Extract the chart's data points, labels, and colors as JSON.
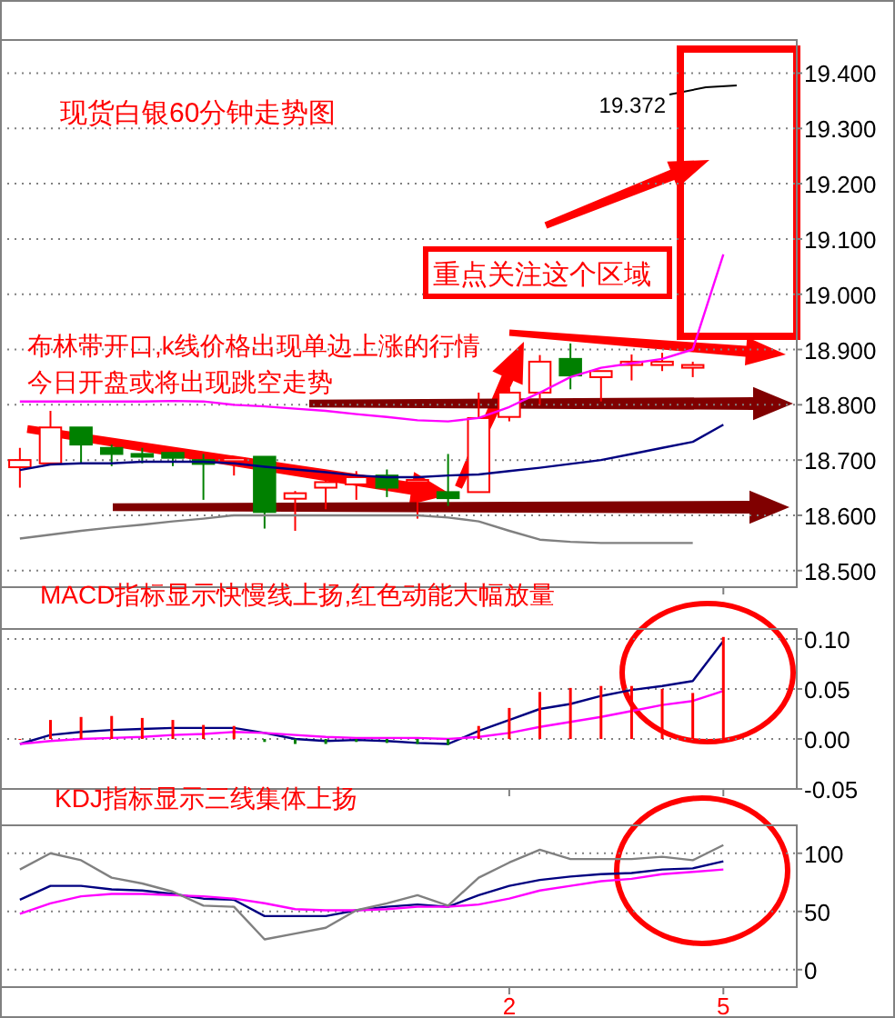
{
  "chart_data": [
    {
      "type": "candlestick",
      "title": "现货白银60分钟走势图",
      "categories": [
        null,
        null,
        null,
        null,
        null,
        null,
        null,
        null,
        null,
        null,
        null,
        null,
        null,
        null,
        null,
        null,
        "2",
        null,
        null,
        null,
        null,
        null,
        null,
        "5"
      ],
      "ohlc": [
        [
          18.687,
          18.722,
          18.65,
          18.7
        ],
        [
          18.694,
          18.789,
          18.694,
          18.759
        ],
        [
          18.759,
          18.759,
          18.694,
          18.728
        ],
        [
          18.722,
          18.728,
          18.689,
          18.711
        ],
        [
          18.711,
          18.722,
          18.694,
          18.706
        ],
        [
          18.713,
          18.713,
          18.689,
          18.704
        ],
        [
          18.7,
          18.711,
          18.628,
          18.693
        ],
        [
          18.698,
          18.703,
          18.672,
          18.703
        ],
        [
          18.706,
          18.706,
          18.576,
          18.606
        ],
        [
          18.63,
          18.644,
          18.572,
          18.64
        ],
        [
          18.65,
          18.667,
          18.611,
          18.66
        ],
        [
          18.656,
          18.68,
          18.628,
          18.669
        ],
        [
          18.672,
          18.683,
          18.633,
          18.65
        ],
        [
          18.66,
          18.672,
          18.594,
          18.664
        ],
        [
          18.642,
          18.711,
          18.617,
          18.631
        ],
        [
          18.642,
          18.822,
          18.642,
          18.776
        ],
        [
          18.778,
          18.83,
          18.77,
          18.822
        ],
        [
          18.822,
          18.89,
          18.8,
          18.878
        ],
        [
          18.883,
          18.911,
          18.828,
          18.853
        ],
        [
          18.85,
          18.861,
          18.806,
          18.861
        ],
        [
          18.872,
          18.891,
          18.844,
          18.878
        ],
        [
          18.872,
          18.894,
          18.861,
          18.878
        ],
        [
          18.867,
          18.878,
          18.85,
          18.872
        ],
        null
      ],
      "colors": [
        "#ff0000",
        "#ff0000",
        "#008000",
        "#008000",
        "#008000",
        "#008000",
        "#008000",
        "#ff0000",
        "#008000",
        "#ff0000",
        "#ff0000",
        "#ff0000",
        "#008000",
        "#ff0000",
        "#008000",
        "#ff0000",
        "#ff0000",
        "#ff0000",
        "#008000",
        "#ff0000",
        "#ff0000",
        "#ff0000",
        "#ff0000",
        null
      ],
      "series": [
        {
          "type": "line",
          "color": "#ff00ff",
          "values": [
            18.806,
            18.806,
            18.806,
            18.806,
            18.806,
            18.807,
            18.806,
            18.8,
            18.797,
            18.793,
            18.789,
            18.783,
            18.778,
            18.772,
            18.77,
            18.776,
            18.796,
            18.822,
            18.85,
            18.867,
            18.875,
            18.883,
            18.9,
            19.072
          ]
        },
        {
          "type": "line",
          "color": "#000080",
          "values": [
            18.682,
            18.692,
            18.694,
            18.694,
            18.697,
            18.697,
            18.697,
            18.694,
            18.688,
            18.683,
            18.678,
            18.672,
            18.669,
            18.669,
            18.672,
            18.674,
            18.68,
            18.686,
            18.693,
            18.7,
            18.711,
            18.722,
            18.733,
            18.764
          ]
        },
        {
          "type": "line",
          "color": "#808080",
          "values": [
            18.558,
            18.565,
            18.572,
            18.578,
            18.583,
            18.589,
            18.594,
            18.6,
            18.6,
            18.6,
            18.6,
            18.6,
            18.6,
            18.6,
            18.596,
            18.589,
            18.572,
            18.556,
            18.552,
            18.55,
            18.55,
            18.55,
            18.55,
            null
          ]
        }
      ],
      "ylim": [
        18.47,
        19.46
      ],
      "yticks": [
        {
          "value": 18.5,
          "label": "18.500"
        },
        {
          "value": 18.6,
          "label": "18.600"
        },
        {
          "value": 18.7,
          "label": "18.700"
        },
        {
          "value": 18.8,
          "label": "18.800"
        },
        {
          "value": 18.9,
          "label": "18.900"
        },
        {
          "value": 19.0,
          "label": "19.000"
        },
        {
          "value": 19.1,
          "label": "19.100"
        },
        {
          "value": 19.2,
          "label": "19.200"
        },
        {
          "value": 19.3,
          "label": "19.300"
        },
        {
          "value": 19.4,
          "label": "19.400"
        }
      ],
      "grid": "y",
      "tick_labels": "y",
      "annotations": [
        "布林带开口,k线价格出现单边上涨的行情",
        "今日开盘或将出现跳空走势",
        "重点关注这个区域",
        "19.372"
      ]
    },
    {
      "type": "bar",
      "title": "MACD指标显示快慢线上扬,红色动能大幅放量",
      "categories": [
        null,
        null,
        null,
        null,
        null,
        null,
        null,
        null,
        null,
        null,
        null,
        null,
        null,
        null,
        null,
        null,
        "2",
        null,
        null,
        null,
        null,
        null,
        null,
        "5"
      ],
      "values": [
        0,
        0.019,
        0.022,
        0.023,
        0.021,
        0.019,
        0.014,
        0.013,
        -0.003,
        -0.005,
        -0.005,
        -0.003,
        -0.004,
        -0.005,
        -0.006,
        0.013,
        0.031,
        0.047,
        0.051,
        0.053,
        0.053,
        0.05,
        0.046,
        0.102
      ],
      "colors": [
        "#ff0000",
        "#ff0000",
        "#ff0000",
        "#ff0000",
        "#ff0000",
        "#ff0000",
        "#ff0000",
        "#ff0000",
        "#008000",
        "#008000",
        "#008000",
        "#008000",
        "#008000",
        "#008000",
        "#008000",
        "#ff0000",
        "#ff0000",
        "#ff0000",
        "#ff0000",
        "#ff0000",
        "#ff0000",
        "#ff0000",
        "#ff0000",
        "#ff0000"
      ],
      "series": [
        {
          "type": "line",
          "color": "#000080",
          "values": [
            -0.005,
            0.004,
            0.007,
            0.009,
            0.01,
            0.011,
            0.011,
            0.011,
            0.006,
            0.0,
            -0.002,
            -0.001,
            -0.002,
            -0.004,
            -0.005,
            0.008,
            0.019,
            0.03,
            0.035,
            0.043,
            0.049,
            0.053,
            0.058,
            0.098
          ]
        },
        {
          "type": "line",
          "color": "#ff00ff",
          "values": [
            -0.005,
            -0.002,
            0.0,
            0.001,
            0.002,
            0.004,
            0.005,
            0.007,
            0.006,
            0.004,
            0.002,
            0.001,
            0.001,
            0.001,
            0.0,
            0.002,
            0.006,
            0.012,
            0.017,
            0.022,
            0.028,
            0.034,
            0.038,
            0.048
          ]
        }
      ],
      "ylim": [
        -0.05,
        0.11
      ],
      "yticks": [
        {
          "value": -0.05,
          "label": "-0.05"
        },
        {
          "value": 0,
          "label": "0.00"
        },
        {
          "value": 0.05,
          "label": "0.05"
        },
        {
          "value": 0.1,
          "label": "0.10"
        }
      ],
      "grid": "y",
      "tick_labels": "y"
    },
    {
      "type": "line",
      "title": "KDJ指标显示三线集体上扬",
      "categories": [
        null,
        null,
        null,
        null,
        null,
        null,
        null,
        null,
        null,
        null,
        null,
        null,
        null,
        null,
        null,
        null,
        "2",
        null,
        null,
        null,
        null,
        null,
        null,
        "5"
      ],
      "series": [
        {
          "color": "#000080",
          "values": [
            60,
            72,
            72,
            69,
            68,
            65,
            61,
            60,
            46,
            46,
            46,
            51,
            54,
            56,
            54,
            64,
            72,
            77,
            80,
            82,
            83,
            86,
            87,
            93
          ]
        },
        {
          "color": "#ff00ff",
          "values": [
            48,
            57,
            63,
            65,
            65,
            64,
            63,
            61,
            57,
            52,
            51,
            51,
            52,
            54,
            54,
            56,
            61,
            68,
            72,
            76,
            78,
            82,
            84,
            86
          ]
        },
        {
          "color": "#808080",
          "values": [
            86,
            100,
            94,
            79,
            74,
            67,
            55,
            54,
            26,
            31,
            36,
            51,
            57,
            64,
            55,
            79,
            92,
            103,
            95,
            95,
            95,
            97,
            94,
            107
          ]
        }
      ],
      "ylim": [
        -15,
        124
      ],
      "yticks": [
        0,
        50,
        100
      ],
      "grid": "y"
    }
  ]
}
